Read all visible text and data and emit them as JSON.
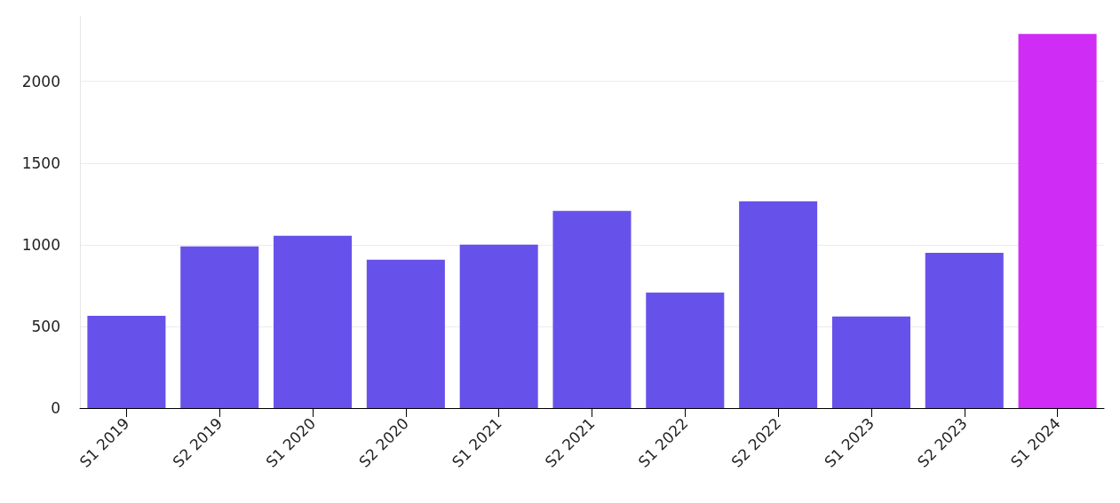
{
  "chart_data": {
    "type": "bar",
    "categories": [
      "S1 2019",
      "S2 2019",
      "S1 2020",
      "S2 2020",
      "S1 2021",
      "S2 2021",
      "S1 2022",
      "S2 2022",
      "S1 2023",
      "S2 2023",
      "S1 2024"
    ],
    "values": [
      565,
      990,
      1055,
      908,
      1000,
      1207,
      707,
      1265,
      560,
      950,
      2290
    ],
    "colors": [
      "#6652ea",
      "#6652ea",
      "#6652ea",
      "#6652ea",
      "#6652ea",
      "#6652ea",
      "#6652ea",
      "#6652ea",
      "#6652ea",
      "#6652ea",
      "#cf2cf5"
    ],
    "ylim": [
      0,
      2400
    ],
    "yticks": [
      0,
      500,
      1000,
      1500,
      2000
    ],
    "grid": "y"
  }
}
